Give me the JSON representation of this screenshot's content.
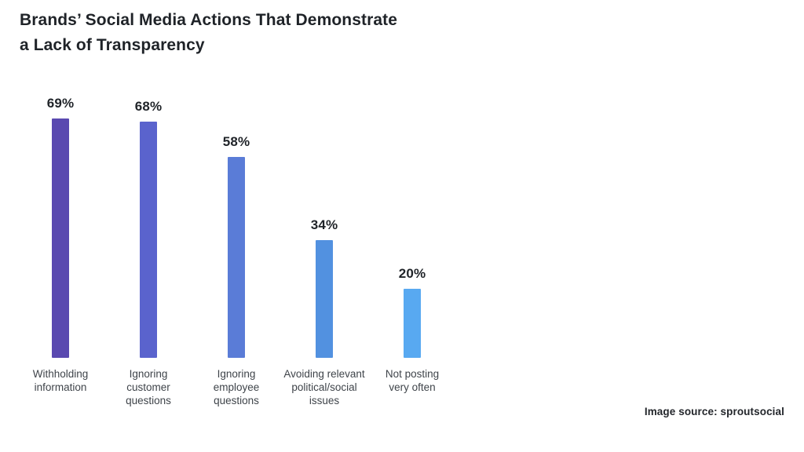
{
  "title": {
    "line1": "Brands’ Social Media Actions That Demonstrate",
    "line2": "a Lack of Transparency"
  },
  "source_note": "Image source: sproutsocial",
  "chart_data": {
    "type": "bar",
    "title": "Brands’ Social Media Actions That Demonstrate a Lack of Transparency",
    "categories": [
      "Withholding information",
      "Ignoring customer questions",
      "Ignoring employee questions",
      "Avoiding relevant political/social issues",
      "Not posting very often"
    ],
    "label_lines": [
      [
        "Withholding",
        "information"
      ],
      [
        "Ignoring",
        "customer",
        "questions"
      ],
      [
        "Ignoring",
        "employee",
        "questions"
      ],
      [
        "Avoiding relevant",
        "political/social",
        "issues"
      ],
      [
        "Not posting",
        "very often"
      ]
    ],
    "values": [
      69,
      68,
      58,
      34,
      20
    ],
    "value_labels": [
      "69%",
      "68%",
      "58%",
      "34%",
      "20%"
    ],
    "bar_colors": [
      "#5a49b0",
      "#5a63cd",
      "#5a7cd7",
      "#5291e0",
      "#58a9f1"
    ],
    "xlabel": "",
    "ylabel": "",
    "ylim": [
      0,
      100
    ],
    "grid": false,
    "legend": false,
    "value_label_position": "above-bar",
    "orientation": "vertical"
  }
}
